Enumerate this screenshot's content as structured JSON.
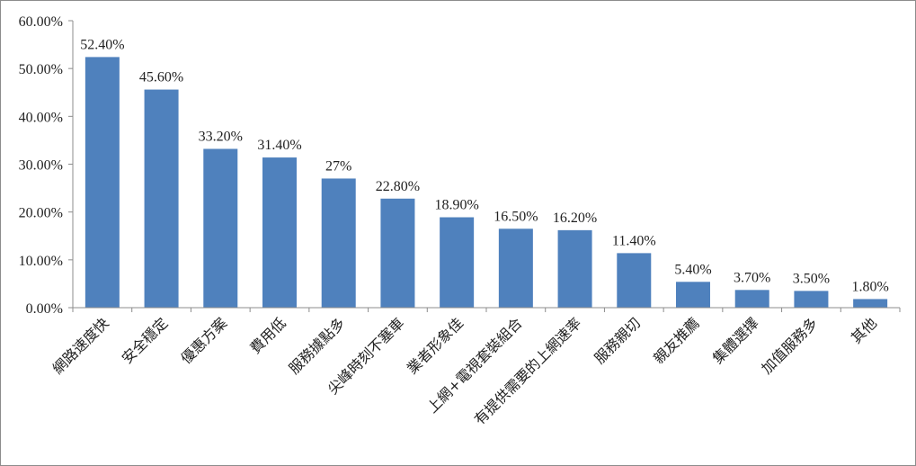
{
  "chart_data": {
    "type": "bar",
    "categories": [
      "網路速度快",
      "安全穩定",
      "優惠方案",
      "費用低",
      "服務據點多",
      "尖峰時刻不塞車",
      "業者形象佳",
      "上網+電視套裝組合",
      "有提供需要的上網速率",
      "服務親切",
      "親友推薦",
      "集體選擇",
      "加值服務多",
      "其他"
    ],
    "values": [
      52.4,
      45.6,
      33.2,
      31.4,
      27,
      22.8,
      18.9,
      16.5,
      16.2,
      11.4,
      5.4,
      3.7,
      3.5,
      1.8
    ],
    "data_labels": [
      "52.40%",
      "45.60%",
      "33.20%",
      "31.40%",
      "27%",
      "22.80%",
      "18.90%",
      "16.50%",
      "16.20%",
      "11.40%",
      "5.40%",
      "3.70%",
      "3.50%",
      "1.80%"
    ],
    "y_ticks": [
      0,
      10,
      20,
      30,
      40,
      50,
      60
    ],
    "y_tick_labels": [
      "0.00%",
      "10.00%",
      "20.00%",
      "30.00%",
      "40.00%",
      "50.00%",
      "60.00%"
    ],
    "ylim": [
      0,
      60
    ],
    "grid": false,
    "legend": "none",
    "title": "",
    "xlabel": "",
    "ylabel": "",
    "bar_color": "#4f81bd"
  }
}
